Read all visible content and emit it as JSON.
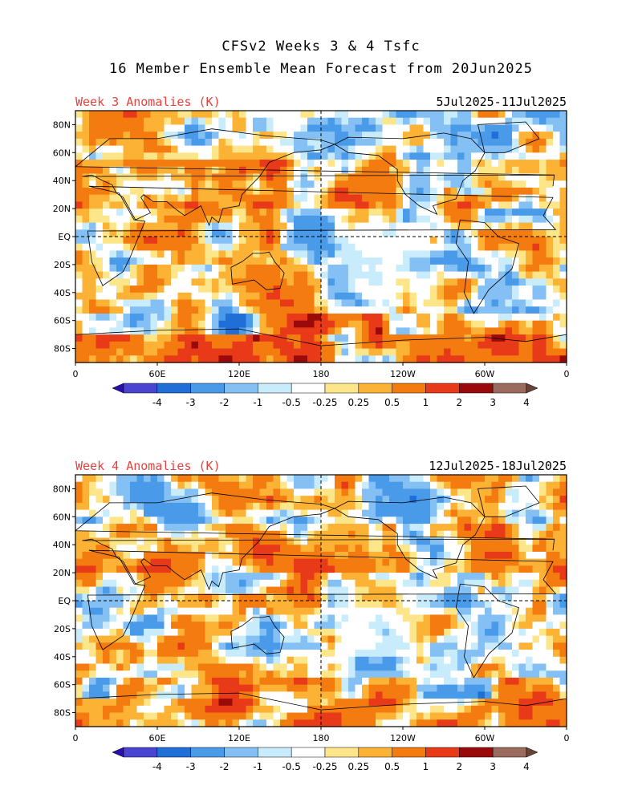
{
  "header": {
    "line1": "CFSv2 Weeks 3 & 4 Tsfc",
    "line2": "16 Member Ensemble Mean Forecast from 20Jun2025"
  },
  "panels": [
    {
      "title": "Week 3 Anomalies (K)",
      "dates": "5Jul2025-11Jul2025"
    },
    {
      "title": "Week 4 Anomalies (K)",
      "dates": "12Jul2025-18Jul2025"
    }
  ],
  "axes": {
    "lat_labels": [
      "80N",
      "60N",
      "40N",
      "20N",
      "EQ",
      "20S",
      "40S",
      "60S",
      "80S"
    ],
    "lon_labels": [
      "0",
      "60E",
      "120E",
      "180",
      "120W",
      "60W",
      "0"
    ]
  },
  "colorbar": {
    "labels": [
      "-4",
      "-3",
      "-2",
      "-1",
      "-0.5",
      "-0.25",
      "0.25",
      "0.5",
      "1",
      "2",
      "3",
      "4"
    ],
    "colors": [
      "#2b0fa8",
      "#4a45d0",
      "#1f6fd6",
      "#4a9aea",
      "#85c0f5",
      "#c8ecfb",
      "#ffffff",
      "#fde58a",
      "#fbb235",
      "#f47b0f",
      "#e83a18",
      "#9a0a0a",
      "#9c6b5f",
      "#6a4238"
    ]
  },
  "legend_units": "K"
}
